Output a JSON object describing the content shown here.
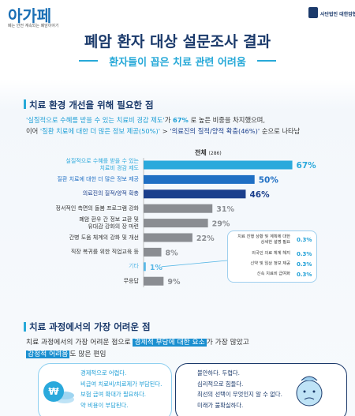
{
  "header": {
    "logo": "아가페",
    "logo_tagline": "폐는 안전 계속되는 폐암이야기",
    "org": "사단법인 대한암협회",
    "title": "폐암 환자 대상 설문조사 결과",
    "subtitle": "환자들이 꼽은 치료 관련 어려움"
  },
  "section1": {
    "heading": "치료 환경 개선을 위해 필요한 점",
    "line1": [
      "'실질적으로 수혜를 받을 수 있는 치료비 경감 제도'",
      "가 ",
      "67%",
      " 로 높은 비중을 차지했으며,"
    ],
    "line2": [
      "이어 ",
      "'질환 치료에 대한 더 많은 정보 제공(50%)'",
      " > ",
      "'의료진의 질적/양적 확충(46%)'",
      " 순으로 나타남"
    ]
  },
  "chart_data": {
    "type": "bar",
    "orientation": "horizontal",
    "legend_title": "전체",
    "legend_count": "(286)",
    "categories": [
      "실질적으로 수혜를 받을 수 있는\n치료비 경감 제도",
      "질환 치료에 대한 더 많은 정보 제공",
      "의료진의 질적/양적 확충",
      "정서적인 측면의 돌봄 프로그램 강화",
      "폐암 환우 간 정보 교환 및\n유대감 강화의 장 마련",
      "간병 도움 체계의 강화 및 개선",
      "직장 복귀를 위한 직업교육 등",
      "기타",
      "무응답"
    ],
    "values": [
      67,
      50,
      46,
      31,
      29,
      22,
      8,
      1,
      9
    ],
    "value_labels": [
      "67%",
      "50%",
      "46%",
      "31%",
      "29%",
      "22%",
      "8%",
      "1%",
      "9%"
    ],
    "colors": [
      "#2aa9dc",
      "#1f6fc4",
      "#1b3f8c",
      "#8a8d92",
      "#8a8d92",
      "#8a8d92",
      "#8a8d92",
      "#5ab8e6",
      "#8a8d92"
    ],
    "xlim": [
      0,
      70
    ],
    "callout": {
      "items": [
        "치료 진행 상황 및 계획에 대한\n상세한 설명 필요",
        "외국인 의료 체계 해지",
        "신약 및 임상 정보 제공",
        "신속 치료비 급여화"
      ],
      "values": [
        0.3,
        0.3,
        0.3,
        0.3
      ],
      "value_labels": [
        "0.3%",
        "0.3%",
        "0.3%",
        "0.3%"
      ]
    }
  },
  "section2": {
    "heading": "치료 과정에서의 가장 어려운 점",
    "line1": [
      "치료 과정에서의 가장 어려운 점으로 ",
      "경제적 부담에 대한 요소",
      "가 가장 많았고"
    ],
    "line2": [
      "감정적 어려움",
      "도 많은 편임"
    ],
    "card1": [
      "경제적으로 어렵다.",
      "비급여 치료비/치료제가 부담된다.",
      "보험 급여 확대가 필요하다.",
      "약 비용이 부담된다."
    ],
    "card2": [
      "불안하다.  두렵다.",
      "심리적으로 힘들다.",
      "최선의 선택이 무엇인지 알 수 없다.",
      "미래가 불확실하다."
    ]
  }
}
